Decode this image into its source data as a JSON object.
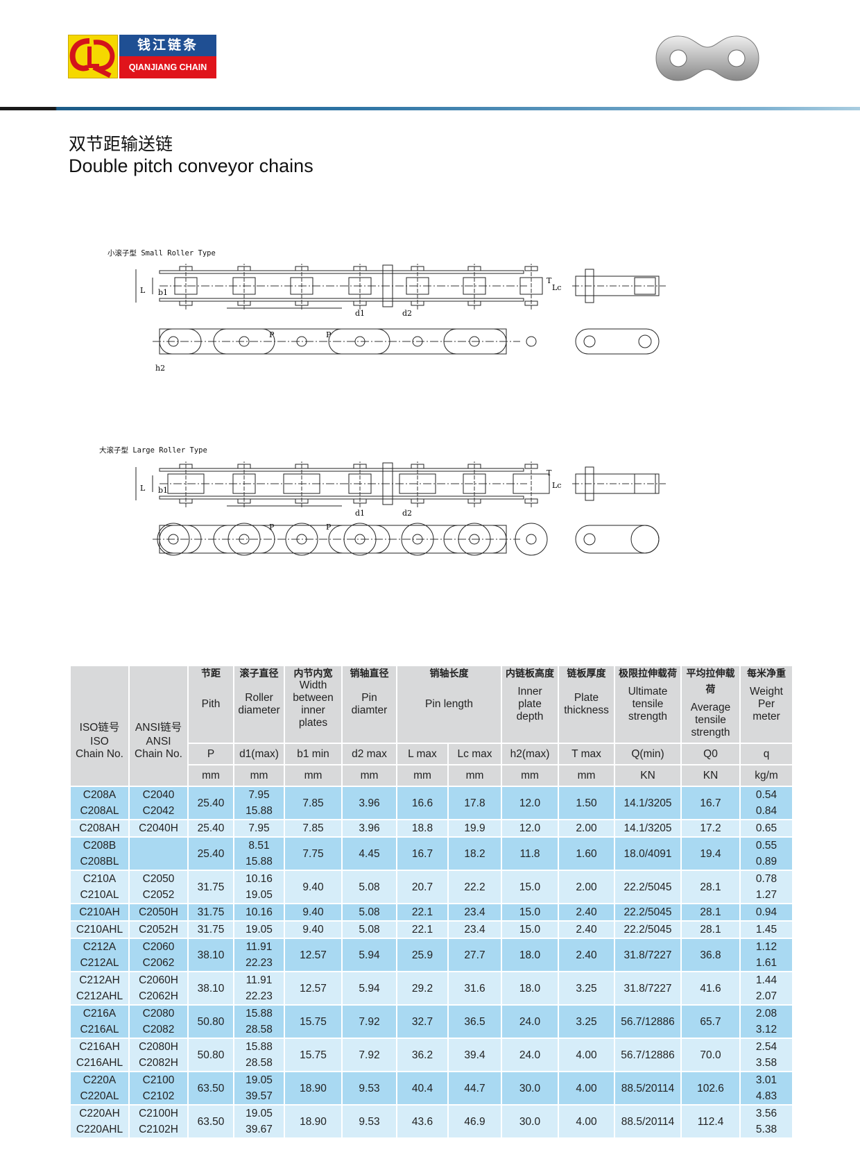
{
  "brand": {
    "cn": "钱江链条",
    "en": "QIANJIANG CHAIN",
    "mark": "QL"
  },
  "title": {
    "cn": "双节距输送链",
    "en": "Double pitch conveyor chains"
  },
  "diagrams": {
    "small": {
      "label": "小滚子型 Small Roller Type"
    },
    "large": {
      "label": "大滚子型 Large Roller Type"
    },
    "dims": {
      "P": "P",
      "d1": "d1",
      "d2": "d2",
      "b1": "b1",
      "L": "L",
      "Lc": "Lc",
      "h2": "h2",
      "T": "T"
    }
  },
  "colors": {
    "header": "#d8d9da",
    "row_dark": "#a9d9f2",
    "row_light": "#d6edf9",
    "logo_yellow": "#f5d800",
    "logo_blue": "#1f4f93",
    "logo_red": "#e0141b"
  },
  "table": {
    "iso_header": {
      "cn": "ISO链号",
      "en1": "ISO",
      "en2": "Chain No."
    },
    "ansi_header": {
      "cn": "ANSI链号",
      "en1": "ANSI",
      "en2": "Chain No."
    },
    "columns": [
      {
        "cn": "节距",
        "en": [
          "Pith"
        ],
        "span": 1
      },
      {
        "cn": "滚子直径",
        "en": [
          "Roller",
          "diameter"
        ],
        "span": 1
      },
      {
        "cn": "内节内宽",
        "en": [
          "Width",
          "between",
          "inner",
          "plates"
        ],
        "span": 1
      },
      {
        "cn": "销轴直径",
        "en": [
          "Pin",
          "diamter"
        ],
        "span": 1
      },
      {
        "cn": "销轴长度",
        "en": [
          "Pin length"
        ],
        "span": 2
      },
      {
        "cn": "内链板高度",
        "en": [
          "Inner",
          "plate",
          "depth"
        ],
        "span": 1
      },
      {
        "cn": "链板厚度",
        "en": [
          "Plate",
          "thickness"
        ],
        "span": 1
      },
      {
        "cn": "极限拉伸载荷",
        "en": [
          "Ultimate",
          "tensile",
          "strength"
        ],
        "span": 1
      },
      {
        "cn": "平均拉伸载荷",
        "en": [
          "Average",
          "tensile",
          "strength"
        ],
        "span": 1
      },
      {
        "cn": "每米净重",
        "en": [
          "Weight",
          "Per",
          "meter"
        ],
        "span": 1
      }
    ],
    "symbols": [
      "P",
      "d1(max)",
      "b1 min",
      "d2 max",
      "L max",
      "Lc max",
      "h2(max)",
      "T max",
      "Q(min)",
      "Q0",
      "q"
    ],
    "units": [
      "mm",
      "mm",
      "mm",
      "mm",
      "mm",
      "mm",
      "mm",
      "mm",
      "KN",
      "KN",
      "kg/m"
    ],
    "rows": [
      {
        "shade": "dark",
        "cells": [
          [
            "C208A",
            "C208AL"
          ],
          [
            "C2040",
            "C2042"
          ],
          "25.40",
          [
            "7.95",
            "15.88"
          ],
          "7.85",
          "3.96",
          "16.6",
          "17.8",
          "12.0",
          "1.50",
          "14.1/3205",
          "16.7",
          [
            "0.54",
            "0.84"
          ]
        ]
      },
      {
        "shade": "light",
        "cells": [
          "C208AH",
          "C2040H",
          "25.40",
          "7.95",
          "7.85",
          "3.96",
          "18.8",
          "19.9",
          "12.0",
          "2.00",
          "14.1/3205",
          "17.2",
          "0.65"
        ]
      },
      {
        "shade": "dark",
        "cells": [
          [
            "C208B",
            "C208BL"
          ],
          "",
          "25.40",
          [
            "8.51",
            "15.88"
          ],
          "7.75",
          "4.45",
          "16.7",
          "18.2",
          "11.8",
          "1.60",
          "18.0/4091",
          "19.4",
          [
            "0.55",
            "0.89"
          ]
        ]
      },
      {
        "shade": "light",
        "cells": [
          [
            "C210A",
            "C210AL"
          ],
          [
            "C2050",
            "C2052"
          ],
          "31.75",
          [
            "10.16",
            "19.05"
          ],
          "9.40",
          "5.08",
          "20.7",
          "22.2",
          "15.0",
          "2.00",
          "22.2/5045",
          "28.1",
          [
            "0.78",
            "1.27"
          ]
        ]
      },
      {
        "shade": "dark",
        "cells": [
          "C210AH",
          "C2050H",
          "31.75",
          "10.16",
          "9.40",
          "5.08",
          "22.1",
          "23.4",
          "15.0",
          "2.40",
          "22.2/5045",
          "28.1",
          "0.94"
        ]
      },
      {
        "shade": "light",
        "cells": [
          "C210AHL",
          "C2052H",
          "31.75",
          "19.05",
          "9.40",
          "5.08",
          "22.1",
          "23.4",
          "15.0",
          "2.40",
          "22.2/5045",
          "28.1",
          "1.45"
        ]
      },
      {
        "shade": "dark",
        "cells": [
          [
            "C212A",
            "C212AL"
          ],
          [
            "C2060",
            "C2062"
          ],
          "38.10",
          [
            "11.91",
            "22.23"
          ],
          "12.57",
          "5.94",
          "25.9",
          "27.7",
          "18.0",
          "2.40",
          "31.8/7227",
          "36.8",
          [
            "1.12",
            "1.61"
          ]
        ]
      },
      {
        "shade": "light",
        "cells": [
          [
            "C212AH",
            "C212AHL"
          ],
          [
            "C2060H",
            "C2062H"
          ],
          "38.10",
          [
            "11.91",
            "22.23"
          ],
          "12.57",
          "5.94",
          "29.2",
          "31.6",
          "18.0",
          "3.25",
          "31.8/7227",
          "41.6",
          [
            "1.44",
            "2.07"
          ]
        ]
      },
      {
        "shade": "dark",
        "cells": [
          [
            "C216A",
            "C216AL"
          ],
          [
            "C2080",
            "C2082"
          ],
          "50.80",
          [
            "15.88",
            "28.58"
          ],
          "15.75",
          "7.92",
          "32.7",
          "36.5",
          "24.0",
          "3.25",
          "56.7/12886",
          "65.7",
          [
            "2.08",
            "3.12"
          ]
        ]
      },
      {
        "shade": "light",
        "cells": [
          [
            "C216AH",
            "C216AHL"
          ],
          [
            "C2080H",
            "C2082H"
          ],
          "50.80",
          [
            "15.88",
            "28.58"
          ],
          "15.75",
          "7.92",
          "36.2",
          "39.4",
          "24.0",
          "4.00",
          "56.7/12886",
          "70.0",
          [
            "2.54",
            "3.58"
          ]
        ]
      },
      {
        "shade": "dark",
        "cells": [
          [
            "C220A",
            "C220AL"
          ],
          [
            "C2100",
            "C2102"
          ],
          "63.50",
          [
            "19.05",
            "39.57"
          ],
          "18.90",
          "9.53",
          "40.4",
          "44.7",
          "30.0",
          "4.00",
          "88.5/20114",
          "102.6",
          [
            "3.01",
            "4.83"
          ]
        ]
      },
      {
        "shade": "light",
        "cells": [
          [
            "C220AH",
            "C220AHL"
          ],
          [
            "C2100H",
            "C2102H"
          ],
          "63.50",
          [
            "19.05",
            "39.67"
          ],
          "18.90",
          "9.53",
          "43.6",
          "46.9",
          "30.0",
          "4.00",
          "88.5/20114",
          "112.4",
          [
            "3.56",
            "5.38"
          ]
        ]
      }
    ]
  }
}
